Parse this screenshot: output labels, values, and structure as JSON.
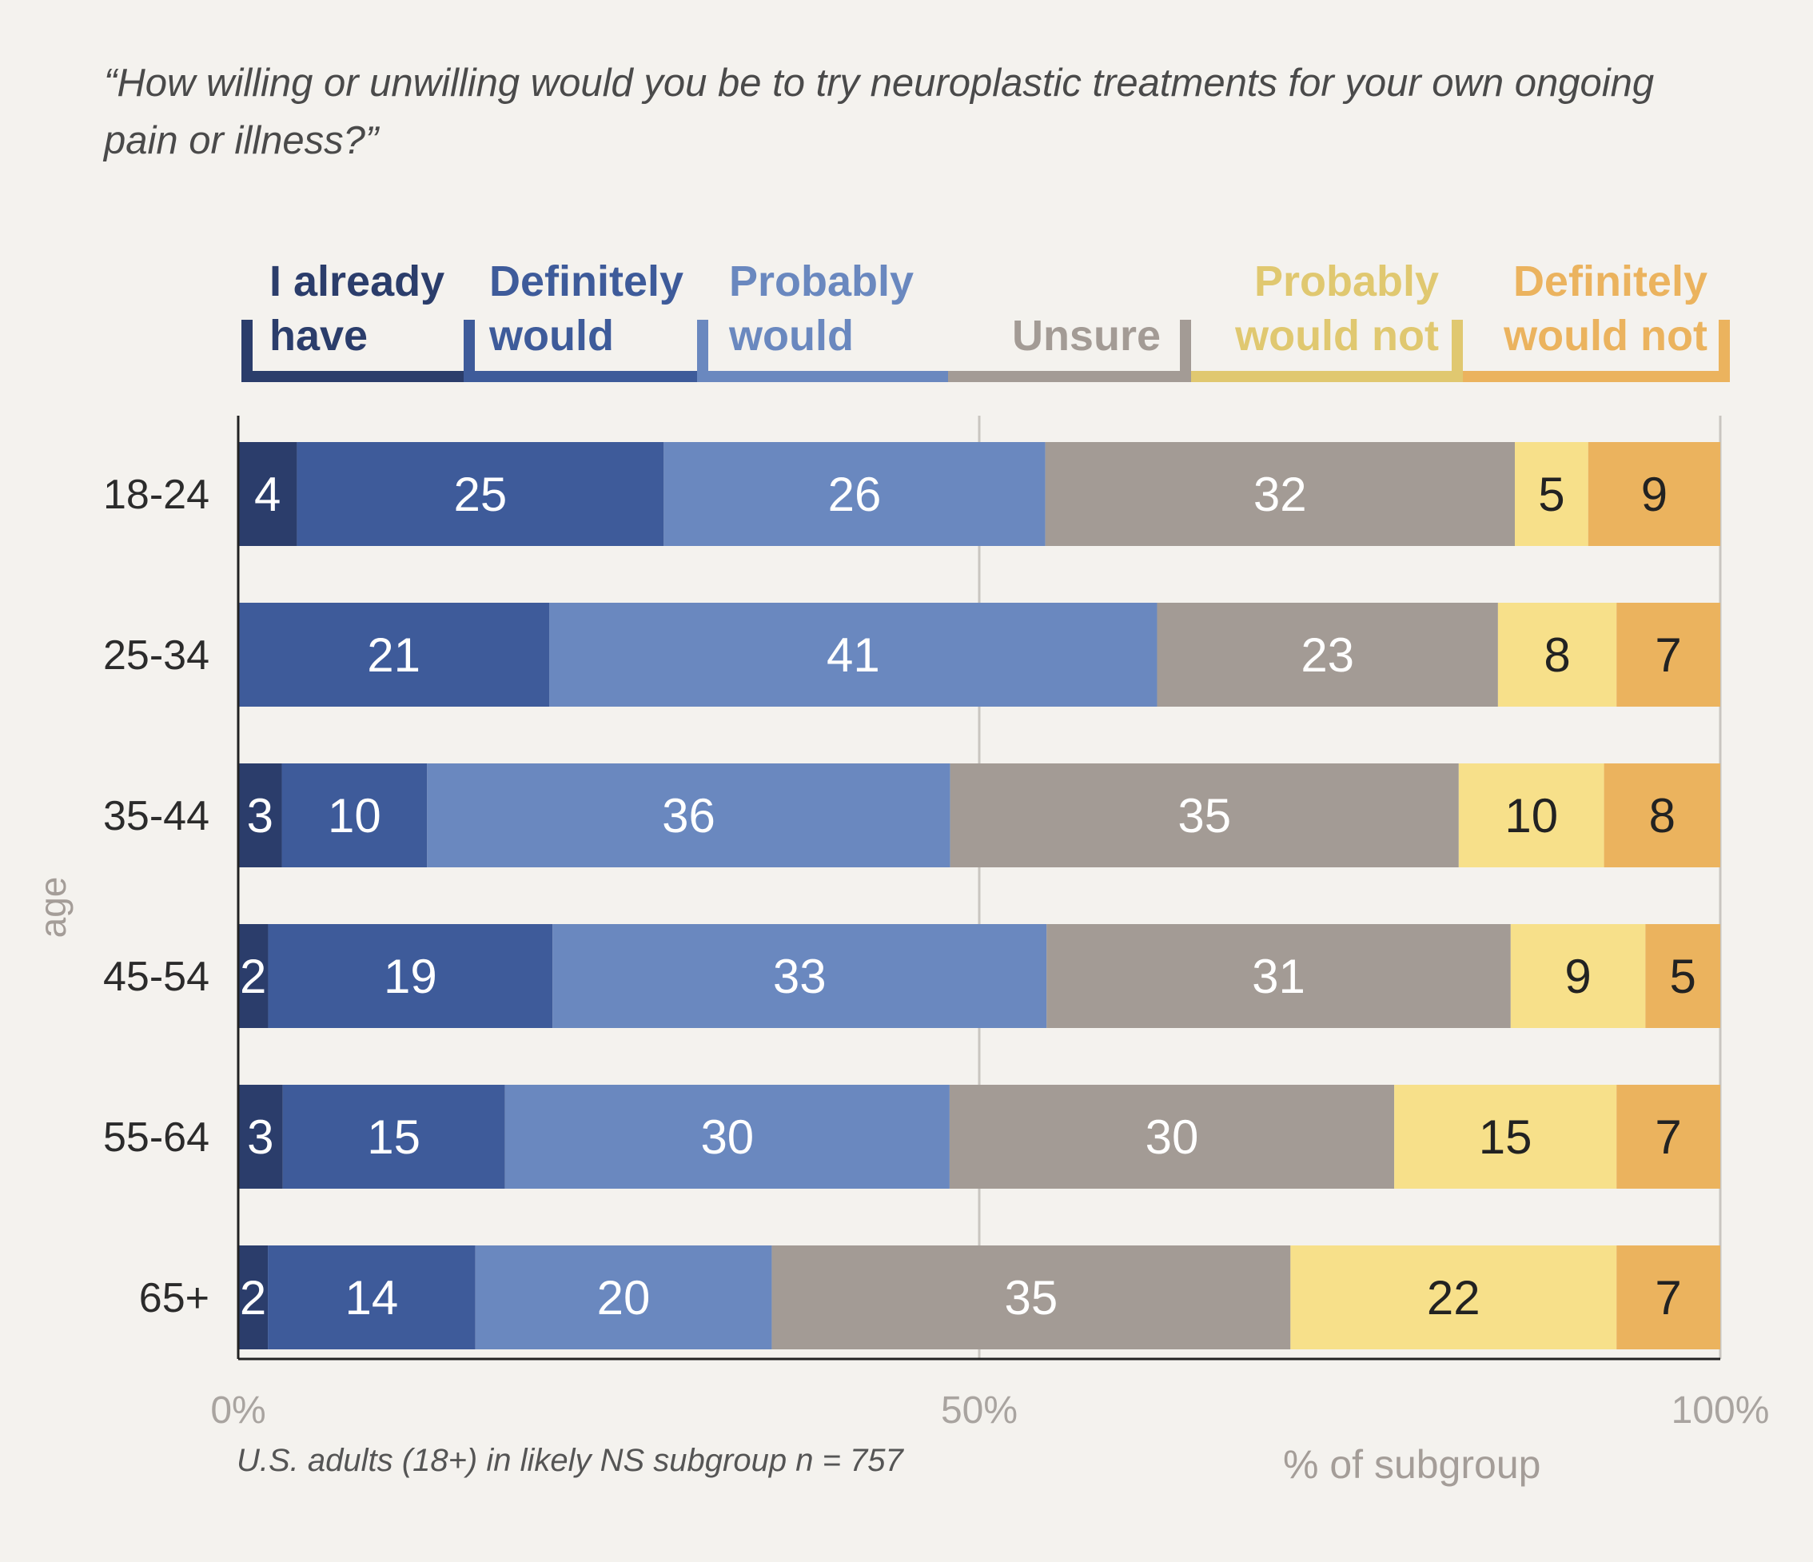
{
  "chart_data": {
    "type": "bar",
    "orientation": "horizontal",
    "stacked": true,
    "title": "“How willing or unwilling would you be to try neuroplastic treatments for your own ongoing pain or illness?”",
    "ylabel": "age",
    "xlabel": "% of subgroup",
    "note": "U.S. adults (18+) in likely NS subgroup n = 757",
    "categories": [
      "18-24",
      "25-34",
      "35-44",
      "45-54",
      "55-64",
      "65+"
    ],
    "xlim": [
      0,
      100
    ],
    "xticks": [
      "0%",
      "50%",
      "100%"
    ],
    "grid": true,
    "legend_position": "top",
    "series": [
      {
        "name": "I already have",
        "legend_lines": [
          "I already",
          "have"
        ],
        "color": "#2b3d6b",
        "text_color": "#ffffff",
        "values": [
          4,
          0,
          3,
          2,
          3,
          2
        ]
      },
      {
        "name": "Definitely would",
        "legend_lines": [
          "Definitely",
          "would"
        ],
        "color": "#3e5b9a",
        "text_color": "#ffffff",
        "values": [
          25,
          21,
          10,
          19,
          15,
          14
        ]
      },
      {
        "name": "Probably would",
        "legend_lines": [
          "Probably",
          "would"
        ],
        "color": "#6a88bf",
        "text_color": "#ffffff",
        "values": [
          26,
          41,
          36,
          33,
          30,
          20
        ]
      },
      {
        "name": "Unsure",
        "legend_lines": [
          "",
          "Unsure"
        ],
        "color": "#a39b95",
        "text_color": "#ffffff",
        "values": [
          32,
          23,
          35,
          31,
          30,
          35
        ]
      },
      {
        "name": "Probably would not",
        "legend_lines": [
          "Probably",
          "would not"
        ],
        "color": "#f7e08a",
        "label_color": "#e0c870",
        "text_color": "#222222",
        "values": [
          5,
          8,
          10,
          9,
          15,
          22
        ]
      },
      {
        "name": "Definitely would not",
        "legend_lines": [
          "Definitely",
          "would not"
        ],
        "color": "#ebb35e",
        "text_color": "#222222",
        "values": [
          9,
          7,
          8,
          5,
          7,
          7
        ]
      }
    ]
  }
}
